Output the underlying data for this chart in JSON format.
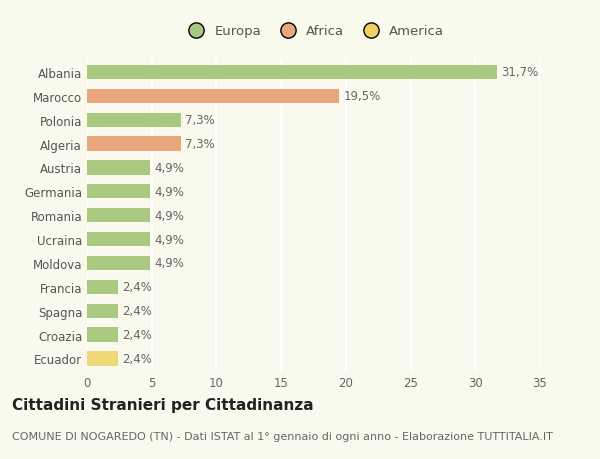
{
  "categories": [
    "Albania",
    "Marocco",
    "Polonia",
    "Algeria",
    "Austria",
    "Germania",
    "Romania",
    "Ucraina",
    "Moldova",
    "Francia",
    "Spagna",
    "Croazia",
    "Ecuador"
  ],
  "values": [
    31.7,
    19.5,
    7.3,
    7.3,
    4.9,
    4.9,
    4.9,
    4.9,
    4.9,
    2.4,
    2.4,
    2.4,
    2.4
  ],
  "labels": [
    "31,7%",
    "19,5%",
    "7,3%",
    "7,3%",
    "4,9%",
    "4,9%",
    "4,9%",
    "4,9%",
    "4,9%",
    "2,4%",
    "2,4%",
    "2,4%",
    "2,4%"
  ],
  "colors": [
    "#a8c97f",
    "#e8a87c",
    "#a8c97f",
    "#e8a87c",
    "#a8c97f",
    "#a8c97f",
    "#a8c97f",
    "#a8c97f",
    "#a8c97f",
    "#a8c97f",
    "#a8c97f",
    "#a8c97f",
    "#f0d878"
  ],
  "legend_labels": [
    "Europa",
    "Africa",
    "America"
  ],
  "legend_colors": [
    "#a8c97f",
    "#e8a87c",
    "#f0d060"
  ],
  "title": "Cittadini Stranieri per Cittadinanza",
  "subtitle": "COMUNE DI NOGAREDO (TN) - Dati ISTAT al 1° gennaio di ogni anno - Elaborazione TUTTITALIA.IT",
  "xlim": [
    0,
    35
  ],
  "xticks": [
    0,
    5,
    10,
    15,
    20,
    25,
    30,
    35
  ],
  "background_color": "#f9f9ee",
  "grid_color": "#ffffff",
  "bar_height": 0.6,
  "label_fontsize": 8.5,
  "title_fontsize": 11,
  "subtitle_fontsize": 8,
  "tick_fontsize": 8.5
}
